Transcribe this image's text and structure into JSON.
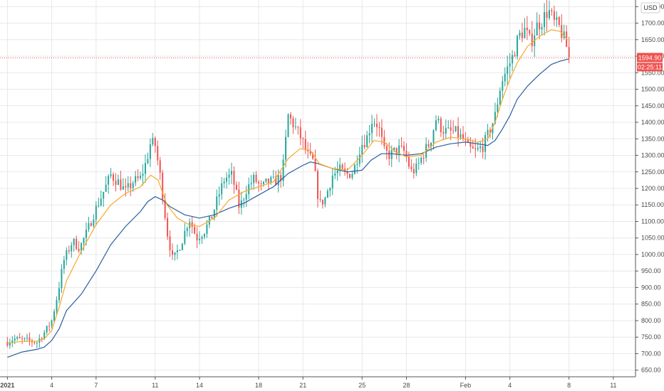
{
  "chart_data": {
    "type": "candlestick",
    "currency": "USD",
    "y_range": [
      630,
      1770
    ],
    "y_ticks": [
      650,
      700,
      750,
      800,
      850,
      900,
      950,
      1000,
      1050,
      1100,
      1150,
      1200,
      1250,
      1300,
      1350,
      1400,
      1450,
      1500,
      1550,
      1600,
      1650,
      1700,
      1750
    ],
    "y_tick_labels": [
      "650.00",
      "700.00",
      "750.00",
      "800.00",
      "850.00",
      "900.00",
      "950.00",
      "1000.00",
      "1050.00",
      "1100.00",
      "1150.00",
      "1200.00",
      "1250.00",
      "1300.00",
      "1350.00",
      "1400.00",
      "1450.00",
      "1500.00",
      "1550.00",
      "1600.00",
      "1650.00",
      "1700.00",
      "1750.00"
    ],
    "x_range_days": [
      -0.5,
      42.5
    ],
    "x_ticks": [
      {
        "day": 0,
        "label": "2021",
        "bold": true
      },
      {
        "day": 3,
        "label": "4"
      },
      {
        "day": 6,
        "label": "7"
      },
      {
        "day": 10,
        "label": "11"
      },
      {
        "day": 13,
        "label": "14"
      },
      {
        "day": 17,
        "label": "18"
      },
      {
        "day": 20,
        "label": "21"
      },
      {
        "day": 24,
        "label": "25"
      },
      {
        "day": 27,
        "label": "28"
      },
      {
        "day": 31,
        "label": "Feb"
      },
      {
        "day": 34,
        "label": "4"
      },
      {
        "day": 38,
        "label": "8"
      },
      {
        "day": 41,
        "label": "11"
      }
    ],
    "last_price": 1594.9,
    "last_price_label": "1594.90",
    "countdown_label": "02:25:11",
    "candle_path": [
      [
        0,
        735
      ],
      [
        0.4,
        745
      ],
      [
        1.2,
        740
      ],
      [
        2.0,
        735
      ],
      [
        2.6,
        770
      ],
      [
        3.0,
        800
      ],
      [
        3.4,
        880
      ],
      [
        3.8,
        980
      ],
      [
        4.4,
        1040
      ],
      [
        4.9,
        1020
      ],
      [
        5.4,
        1070
      ],
      [
        5.9,
        1130
      ],
      [
        6.5,
        1190
      ],
      [
        7.0,
        1240
      ],
      [
        7.5,
        1220
      ],
      [
        8.0,
        1190
      ],
      [
        8.5,
        1220
      ],
      [
        9.0,
        1230
      ],
      [
        9.4,
        1280
      ],
      [
        9.7,
        1340
      ],
      [
        10.0,
        1330
      ],
      [
        10.4,
        1220
      ],
      [
        10.8,
        1070
      ],
      [
        11.2,
        980
      ],
      [
        11.8,
        1040
      ],
      [
        12.3,
        1110
      ],
      [
        12.8,
        1050
      ],
      [
        13.3,
        1070
      ],
      [
        13.8,
        1110
      ],
      [
        14.3,
        1180
      ],
      [
        14.7,
        1230
      ],
      [
        15.2,
        1240
      ],
      [
        15.7,
        1140
      ],
      [
        16.2,
        1200
      ],
      [
        16.7,
        1230
      ],
      [
        17.2,
        1200
      ],
      [
        17.6,
        1220
      ],
      [
        18.1,
        1220
      ],
      [
        18.6,
        1240
      ],
      [
        19.0,
        1420
      ],
      [
        19.4,
        1390
      ],
      [
        19.9,
        1350
      ],
      [
        20.3,
        1300
      ],
      [
        20.7,
        1280
      ],
      [
        21.1,
        1150
      ],
      [
        21.5,
        1170
      ],
      [
        22.0,
        1240
      ],
      [
        22.5,
        1255
      ],
      [
        22.9,
        1240
      ],
      [
        23.4,
        1250
      ],
      [
        23.9,
        1330
      ],
      [
        24.3,
        1350
      ],
      [
        24.7,
        1410
      ],
      [
        25.1,
        1390
      ],
      [
        25.5,
        1310
      ],
      [
        25.9,
        1300
      ],
      [
        26.4,
        1320
      ],
      [
        26.9,
        1310
      ],
      [
        27.3,
        1250
      ],
      [
        27.7,
        1260
      ],
      [
        28.2,
        1310
      ],
      [
        28.6,
        1340
      ],
      [
        29.0,
        1410
      ],
      [
        29.4,
        1380
      ],
      [
        29.8,
        1370
      ],
      [
        30.3,
        1370
      ],
      [
        30.8,
        1350
      ],
      [
        31.2,
        1320
      ],
      [
        31.7,
        1310
      ],
      [
        32.2,
        1330
      ],
      [
        32.6,
        1370
      ],
      [
        33.0,
        1420
      ],
      [
        33.4,
        1520
      ],
      [
        33.8,
        1560
      ],
      [
        34.2,
        1600
      ],
      [
        34.6,
        1660
      ],
      [
        35.0,
        1680
      ],
      [
        35.4,
        1640
      ],
      [
        35.8,
        1690
      ],
      [
        36.2,
        1710
      ],
      [
        36.6,
        1740
      ],
      [
        37.0,
        1700
      ],
      [
        37.3,
        1690
      ],
      [
        37.6,
        1660
      ],
      [
        37.9,
        1620
      ],
      [
        38.1,
        1595
      ]
    ],
    "ma_fast": [
      [
        0,
        732
      ],
      [
        1,
        737
      ],
      [
        2,
        738
      ],
      [
        2.5,
        745
      ],
      [
        3,
        770
      ],
      [
        3.5,
        840
      ],
      [
        4,
        920
      ],
      [
        5,
        1010
      ],
      [
        6,
        1090
      ],
      [
        7,
        1150
      ],
      [
        8,
        1185
      ],
      [
        9,
        1205
      ],
      [
        9.7,
        1240
      ],
      [
        10.2,
        1225
      ],
      [
        10.8,
        1150
      ],
      [
        11.5,
        1110
      ],
      [
        12.3,
        1090
      ],
      [
        13,
        1085
      ],
      [
        14,
        1110
      ],
      [
        15,
        1165
      ],
      [
        16,
        1190
      ],
      [
        17,
        1205
      ],
      [
        18,
        1220
      ],
      [
        19,
        1290
      ],
      [
        19.8,
        1320
      ],
      [
        20.5,
        1315
      ],
      [
        21.1,
        1275
      ],
      [
        22,
        1260
      ],
      [
        23,
        1255
      ],
      [
        24,
        1300
      ],
      [
        24.8,
        1345
      ],
      [
        25.5,
        1340
      ],
      [
        26.3,
        1310
      ],
      [
        27,
        1295
      ],
      [
        28,
        1300
      ],
      [
        29,
        1340
      ],
      [
        30,
        1355
      ],
      [
        31,
        1350
      ],
      [
        31.8,
        1340
      ],
      [
        32.5,
        1350
      ],
      [
        33,
        1400
      ],
      [
        33.5,
        1470
      ],
      [
        34,
        1530
      ],
      [
        34.5,
        1580
      ],
      [
        35.2,
        1630
      ],
      [
        36,
        1660
      ],
      [
        36.8,
        1680
      ],
      [
        37.4,
        1675
      ],
      [
        37.9,
        1650
      ]
    ],
    "ma_slow": [
      [
        0,
        689
      ],
      [
        1,
        705
      ],
      [
        2,
        713
      ],
      [
        2.5,
        720
      ],
      [
        3,
        740
      ],
      [
        3.5,
        775
      ],
      [
        4,
        830
      ],
      [
        5,
        880
      ],
      [
        6,
        950
      ],
      [
        7,
        1030
      ],
      [
        8,
        1085
      ],
      [
        9,
        1130
      ],
      [
        9.5,
        1160
      ],
      [
        10,
        1175
      ],
      [
        10.5,
        1165
      ],
      [
        11,
        1145
      ],
      [
        12,
        1120
      ],
      [
        13,
        1110
      ],
      [
        14,
        1120
      ],
      [
        15,
        1140
      ],
      [
        16,
        1155
      ],
      [
        17,
        1180
      ],
      [
        18,
        1205
      ],
      [
        19,
        1245
      ],
      [
        20,
        1270
      ],
      [
        20.5,
        1280
      ],
      [
        21,
        1275
      ],
      [
        22,
        1260
      ],
      [
        23,
        1250
      ],
      [
        24,
        1255
      ],
      [
        24.6,
        1285
      ],
      [
        25.3,
        1305
      ],
      [
        26,
        1305
      ],
      [
        27,
        1300
      ],
      [
        28,
        1305
      ],
      [
        29,
        1325
      ],
      [
        30,
        1335
      ],
      [
        31,
        1340
      ],
      [
        31.8,
        1335
      ],
      [
        32.5,
        1330
      ],
      [
        33,
        1345
      ],
      [
        33.5,
        1380
      ],
      [
        34,
        1420
      ],
      [
        34.5,
        1470
      ],
      [
        35.2,
        1510
      ],
      [
        36,
        1545
      ],
      [
        36.8,
        1575
      ],
      [
        37.4,
        1585
      ],
      [
        38,
        1592
      ]
    ],
    "colors": {
      "up": "#26a69a",
      "down": "#ef5350",
      "ma_fast": "#f7a928",
      "ma_slow": "#2b5f9e",
      "grid": "#e8e8e8",
      "price_line": "#ef5350"
    }
  }
}
